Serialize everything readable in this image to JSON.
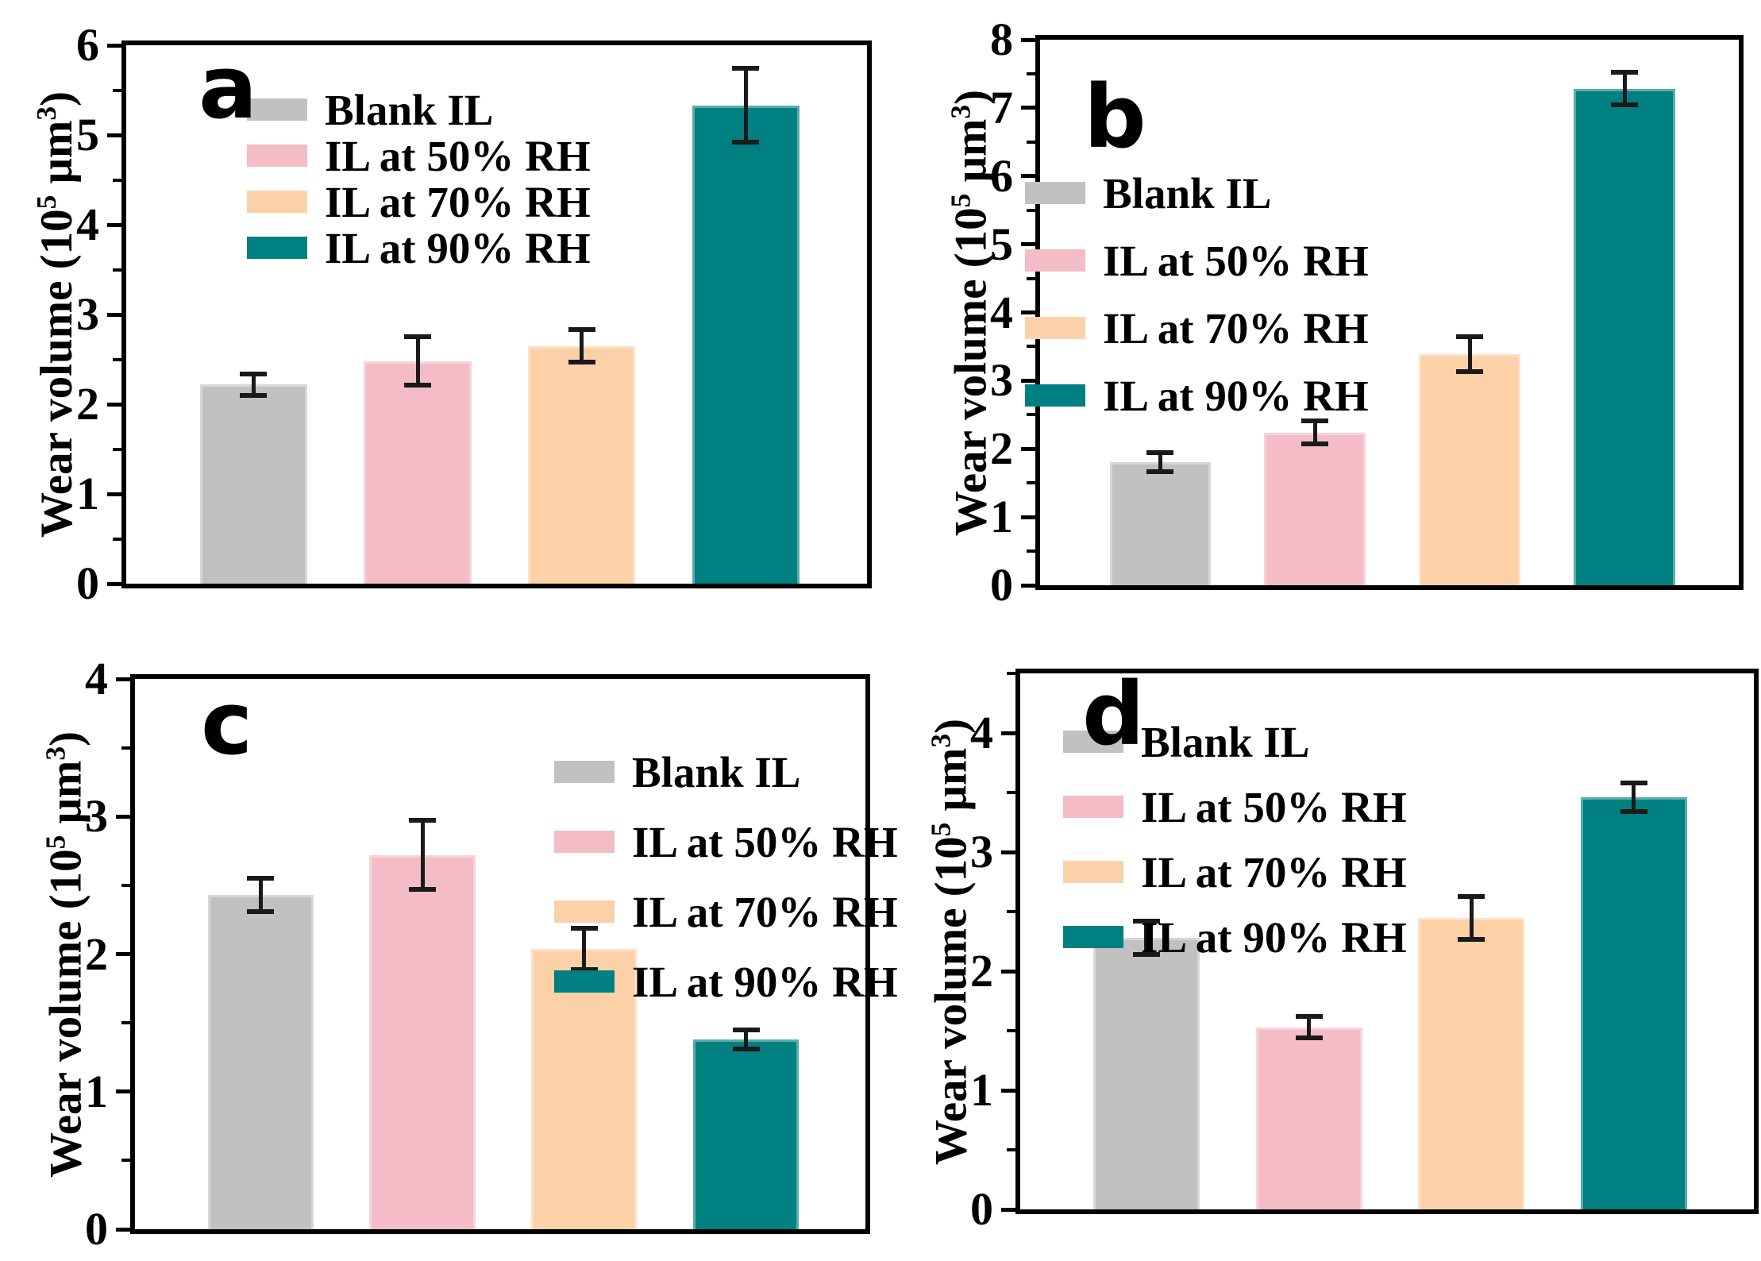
{
  "figure": {
    "description": "Four-panel bar chart figure of wear volume under different humidity conditions",
    "y_axis_title": "Wear volume (10⁵ μm³)",
    "legend_labels": [
      "Blank IL",
      "IL at 50% RH",
      "IL at 70% RH",
      "IL at 90% RH"
    ],
    "panel_letters": [
      "a",
      "b",
      "c",
      "d"
    ],
    "colors": {
      "blank_il": "#c1c1c1",
      "il_50_rh": "#f3bcc7",
      "il_70_rh": "#fcd1a8",
      "il_90_rh": "#008080",
      "axis": "#000000",
      "error_bar": "#1a1a1a",
      "background": "#ffffff"
    }
  },
  "chart_data": [
    {
      "type": "bar",
      "panel_label": "a",
      "categories": [
        "Blank IL",
        "IL at 50% RH",
        "IL at 70% RH",
        "IL at 90% RH"
      ],
      "values": [
        2.22,
        2.48,
        2.65,
        5.33
      ],
      "errors": [
        0.12,
        0.27,
        0.18,
        0.41
      ],
      "bar_colors": [
        "#c1c1c1",
        "#f3bcc7",
        "#fcd1a8",
        "#008080"
      ],
      "title": "",
      "xlabel": "",
      "ylabel": "Wear volume (10⁵ μm³)",
      "ylabel_parts": {
        "base1": "Wear volume (10",
        "sup1": "5",
        "base2": " μm",
        "sup2": "3",
        "base3": ")"
      },
      "ylim": [
        0,
        6
      ],
      "yticks": [
        0,
        1,
        2,
        3,
        4,
        5,
        6
      ],
      "minor_tick_step": 0.5,
      "grid": false,
      "legend_position": "top-left"
    },
    {
      "type": "bar",
      "panel_label": "b",
      "categories": [
        "Blank IL",
        "IL at 50% RH",
        "IL at 70% RH",
        "IL at 90% RH"
      ],
      "values": [
        1.8,
        2.24,
        3.39,
        7.28
      ],
      "errors": [
        0.14,
        0.17,
        0.26,
        0.24
      ],
      "bar_colors": [
        "#c1c1c1",
        "#f3bcc7",
        "#fcd1a8",
        "#008080"
      ],
      "title": "",
      "xlabel": "",
      "ylabel": "Wear volume (10⁵ μm³)",
      "ylabel_parts": {
        "base1": "Wear volume (10",
        "sup1": "5",
        "base2": " μm",
        "sup2": "3",
        "base3": ")"
      },
      "ylim": [
        0,
        8
      ],
      "yticks": [
        0,
        1,
        2,
        3,
        4,
        5,
        6,
        7,
        8
      ],
      "minor_tick_step": 0.5,
      "grid": false,
      "legend_position": "top-left"
    },
    {
      "type": "bar",
      "panel_label": "c",
      "categories": [
        "Blank IL",
        "IL at 50% RH",
        "IL at 70% RH",
        "IL at 90% RH"
      ],
      "values": [
        2.43,
        2.72,
        2.04,
        1.38
      ],
      "errors": [
        0.12,
        0.25,
        0.15,
        0.07
      ],
      "bar_colors": [
        "#c1c1c1",
        "#f3bcc7",
        "#fcd1a8",
        "#008080"
      ],
      "title": "",
      "xlabel": "",
      "ylabel": "Wear volume (10⁵ μm³)",
      "ylabel_parts": {
        "base1": "Wear volume (10",
        "sup1": "5",
        "base2": " μm",
        "sup2": "3",
        "base3": ")"
      },
      "ylim": [
        0,
        4
      ],
      "yticks": [
        0,
        1,
        2,
        3,
        4
      ],
      "minor_tick_step": 0.5,
      "grid": false,
      "legend_position": "top-right"
    },
    {
      "type": "bar",
      "panel_label": "d",
      "categories": [
        "Blank IL",
        "IL at 50% RH",
        "IL at 70% RH",
        "IL at 90% RH"
      ],
      "values": [
        2.28,
        1.53,
        2.45,
        3.46
      ],
      "errors": [
        0.14,
        0.09,
        0.18,
        0.12
      ],
      "bar_colors": [
        "#c1c1c1",
        "#f3bcc7",
        "#fcd1a8",
        "#008080"
      ],
      "title": "",
      "xlabel": "",
      "ylabel": "Wear volume (10⁵ μm³)",
      "ylabel_parts": {
        "base1": "Wear volume (10",
        "sup1": "5",
        "base2": " μm",
        "sup2": "3",
        "base3": ")"
      },
      "ylim": [
        0,
        4.5
      ],
      "yticks": [
        0,
        1,
        2,
        3,
        4
      ],
      "minor_tick_step": 0.5,
      "grid": false,
      "legend_position": "top-left"
    }
  ]
}
